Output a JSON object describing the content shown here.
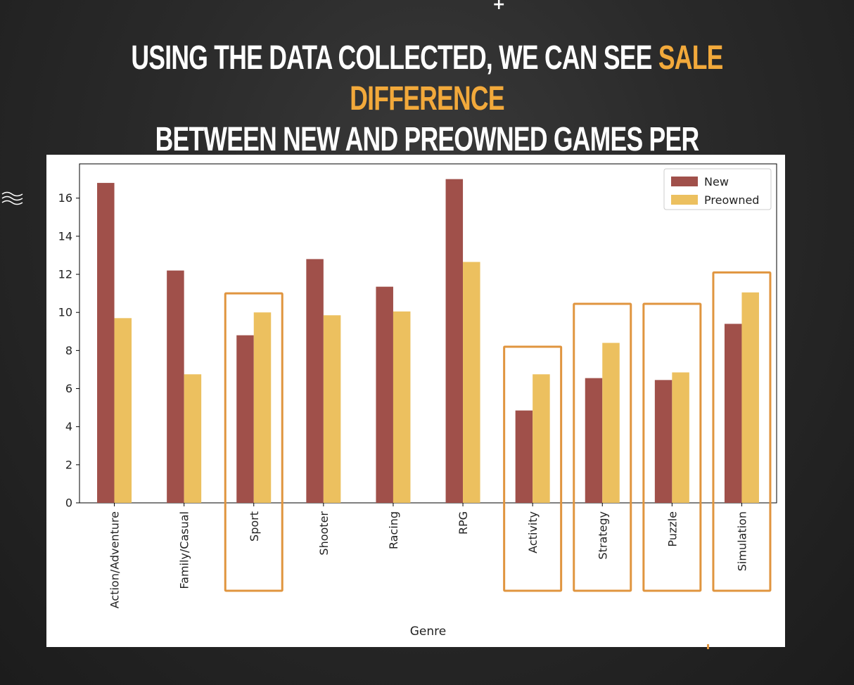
{
  "slide": {
    "headline_part1": "USING THE DATA COLLECTED, WE CAN SEE ",
    "headline_highlight": "SALE DIFFERENCE",
    "headline_line2": "BETWEEN NEW AND PREOWNED GAMES PER GENRE",
    "highlight_color": "#f2a93b",
    "plus_glyph": "+",
    "squiggle_icon": "wave-lines-icon"
  },
  "chart_data": {
    "type": "bar",
    "title": "",
    "xlabel": "Genre",
    "ylabel": "",
    "ylim": [
      0,
      17.8
    ],
    "yticks": [
      0,
      2,
      4,
      6,
      8,
      10,
      12,
      14,
      16
    ],
    "categories": [
      "Action/Adventure",
      "Family/Casual",
      "Sport",
      "Shooter",
      "Racing",
      "RPG",
      "Activity",
      "Strategy",
      "Puzzle",
      "Simulation"
    ],
    "series": [
      {
        "name": "New",
        "color": "#a0504a",
        "values": [
          16.8,
          12.2,
          8.8,
          12.8,
          11.35,
          17.0,
          4.85,
          6.55,
          6.45,
          9.4
        ]
      },
      {
        "name": "Preowned",
        "color": "#ecc05f",
        "values": [
          9.7,
          6.75,
          10.0,
          9.85,
          10.05,
          12.65,
          6.75,
          8.4,
          6.85,
          11.05
        ]
      }
    ],
    "highlighted_categories": [
      "Sport",
      "Activity",
      "Strategy",
      "Puzzle",
      "Simulation"
    ],
    "highlight_box_color": "#e0953f",
    "legend_position": "top-right",
    "grid": false
  }
}
